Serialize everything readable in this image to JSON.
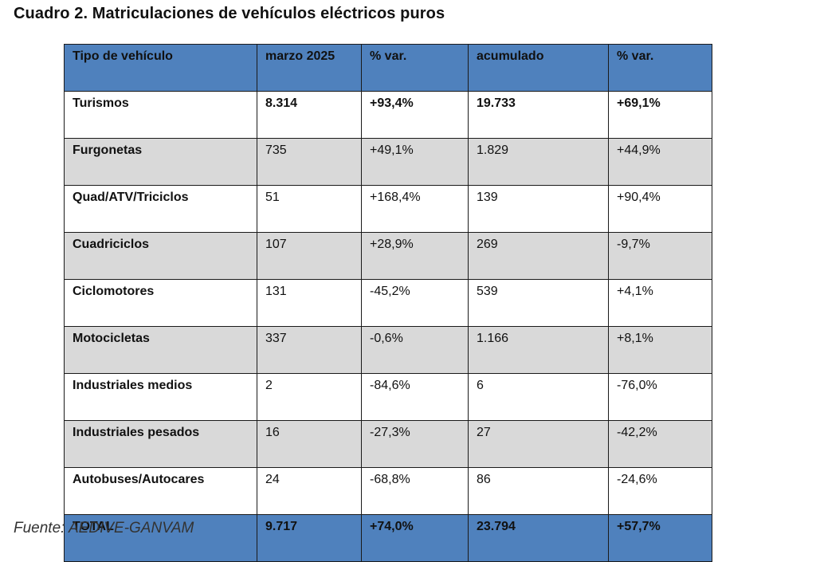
{
  "title": "Cuadro 2. Matriculaciones de vehículos eléctricos puros",
  "table": {
    "headers": [
      "Tipo de vehículo",
      "marzo 2025",
      "% var.",
      "acumulado",
      "% var."
    ],
    "rows": [
      [
        "Turismos",
        "8.314",
        "+93,4%",
        "19.733",
        "+69,1%"
      ],
      [
        "Furgonetas",
        "735",
        "+49,1%",
        "1.829",
        "+44,9%"
      ],
      [
        "Quad/ATV/Triciclos",
        "51",
        "+168,4%",
        "139",
        "+90,4%"
      ],
      [
        "Cuadriciclos",
        "107",
        "+28,9%",
        "269",
        "-9,7%"
      ],
      [
        "Ciclomotores",
        "131",
        "-45,2%",
        "539",
        "+4,1%"
      ],
      [
        "Motocicletas",
        "337",
        "-0,6%",
        "1.166",
        "+8,1%"
      ],
      [
        "Industriales medios",
        "2",
        "-84,6%",
        "6",
        "-76,0%"
      ],
      [
        "Industriales pesados",
        "16",
        "-27,3%",
        "27",
        "-42,2%"
      ],
      [
        "Autobuses/Autocares",
        "24",
        "-68,8%",
        "86",
        "-24,6%"
      ]
    ],
    "total": [
      "TOTAL",
      "9.717",
      "+74,0%",
      "23.794",
      "+57,7%"
    ]
  },
  "source": "Fuente: AEDIVE-GANVAM",
  "colors": {
    "header_bg": "#4f81bd",
    "stripe_bg": "#d9d9d9"
  }
}
